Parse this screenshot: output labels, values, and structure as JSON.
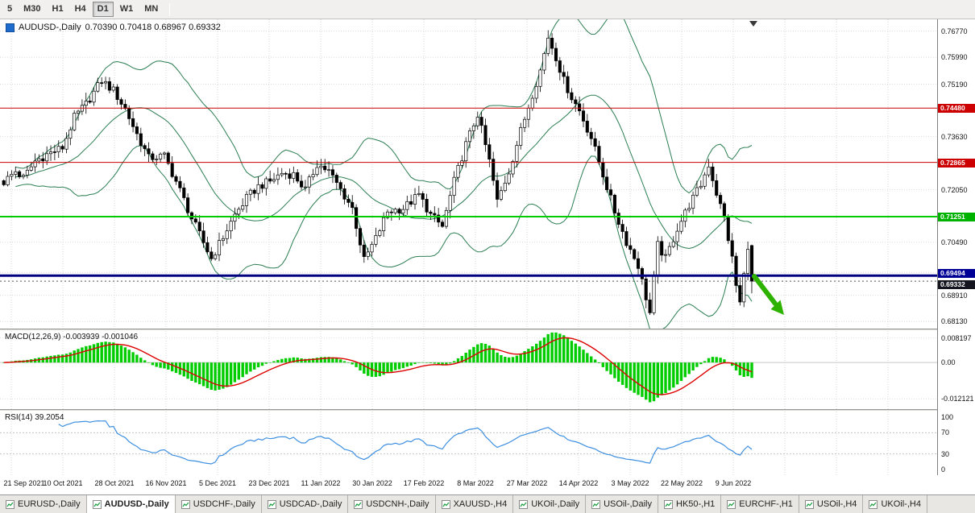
{
  "toolbar": {
    "timeframes": [
      "5",
      "M30",
      "H1",
      "H4",
      "D1",
      "W1",
      "MN"
    ],
    "active": "D1"
  },
  "chart": {
    "title": "AUDUSD-,Daily",
    "ohlc_text": "0.70390 0.70418 0.68967 0.69332"
  },
  "macd_panel": {
    "label": "MACD(12,26,9) -0.003939 -0.001046"
  },
  "rsi_panel": {
    "label": "RSI(14) 39.2054"
  },
  "price_axis": {
    "ticks": [
      {
        "text": "0.76770",
        "value": 0.7677
      },
      {
        "text": "0.75990",
        "value": 0.7599
      },
      {
        "text": "0.75190",
        "value": 0.7519
      },
      {
        "text": "0.73630",
        "value": 0.7363
      },
      {
        "text": "0.72050",
        "value": 0.7205
      },
      {
        "text": "0.70490",
        "value": 0.7049
      },
      {
        "text": "0.69590",
        "value": 0.6959
      },
      {
        "text": "0.68910",
        "value": 0.6891
      },
      {
        "text": "0.68130",
        "value": 0.6813
      }
    ],
    "badges": [
      {
        "text": "0.74480",
        "value": 0.7448,
        "bg": "#cc0000",
        "nudge": 0
      },
      {
        "text": "0.72865",
        "value": 0.72865,
        "bg": "#cc0000",
        "nudge": 0
      },
      {
        "text": "0.71251",
        "value": 0.71251,
        "bg": "#00b200",
        "nudge": 0
      },
      {
        "text": "0.69494",
        "value": 0.69494,
        "bg": "#000097",
        "nudge": -3
      },
      {
        "text": "0.69332",
        "value": 0.69332,
        "bg": "#15151f",
        "nudge": 4
      }
    ]
  },
  "time_axis": {
    "labels": [
      "21 Sep 2021",
      "10 Oct 2021",
      "28 Oct 2021",
      "16 Nov 2021",
      "5 Dec 2021",
      "23 Dec 2021",
      "11 Jan 2022",
      "30 Jan 2022",
      "17 Feb 2022",
      "8 Mar 2022",
      "27 Mar 2022",
      "14 Apr 2022",
      "3 May 2022",
      "22 May 2022",
      "9 Jun 2022"
    ]
  },
  "tabs": {
    "active_index": 1,
    "items": [
      "EURUSD-,Daily",
      "AUDUSD-,Daily",
      "USDCHF-,Daily",
      "USDCAD-,Daily",
      "USDCNH-,Daily",
      "XAUUSD-,H4",
      "UKOil-,Daily",
      "USOil-,Daily",
      "HK50-,H1",
      "EURCHF-,H1",
      "USOil-,H4",
      "UKOil-,H4"
    ]
  },
  "chart_data": {
    "type": "candlestick",
    "symbol": "AUDUSD-",
    "period": "Daily",
    "current_ohlc": {
      "open": 0.7039,
      "high": 0.70418,
      "low": 0.68967,
      "close": 0.69332
    },
    "price_domain": [
      0.6792,
      0.7712
    ],
    "num_candles": 192,
    "close_path": [
      [
        0,
        0.7228
      ],
      [
        3,
        0.726
      ],
      [
        5,
        0.724
      ],
      [
        8,
        0.729
      ],
      [
        11,
        0.731
      ],
      [
        15,
        0.733
      ],
      [
        18,
        0.742
      ],
      [
        21,
        0.746
      ],
      [
        25,
        0.753
      ],
      [
        28,
        0.75
      ],
      [
        31,
        0.7445
      ],
      [
        34,
        0.737
      ],
      [
        37,
        0.73
      ],
      [
        41,
        0.7305
      ],
      [
        44,
        0.723
      ],
      [
        48,
        0.712
      ],
      [
        53,
        0.7
      ],
      [
        56,
        0.7065
      ],
      [
        59,
        0.713
      ],
      [
        62,
        0.718
      ],
      [
        65,
        0.7215
      ],
      [
        68,
        0.723
      ],
      [
        71,
        0.7255
      ],
      [
        74,
        0.725
      ],
      [
        77,
        0.7205
      ],
      [
        80,
        0.7282
      ],
      [
        83,
        0.726
      ],
      [
        86,
        0.7205
      ],
      [
        89,
        0.715
      ],
      [
        92,
        0.6995
      ],
      [
        95,
        0.706
      ],
      [
        98,
        0.714
      ],
      [
        102,
        0.715
      ],
      [
        106,
        0.719
      ],
      [
        109,
        0.713
      ],
      [
        112,
        0.7095
      ],
      [
        115,
        0.723
      ],
      [
        118,
        0.734
      ],
      [
        121,
        0.743
      ],
      [
        124,
        0.729
      ],
      [
        126,
        0.717
      ],
      [
        129,
        0.726
      ],
      [
        132,
        0.738
      ],
      [
        135,
        0.749
      ],
      [
        137,
        0.756
      ],
      [
        139,
        0.766
      ],
      [
        141,
        0.76
      ],
      [
        143,
        0.753
      ],
      [
        145,
        0.748
      ],
      [
        147,
        0.744
      ],
      [
        150,
        0.736
      ],
      [
        153,
        0.725
      ],
      [
        156,
        0.714
      ],
      [
        159,
        0.705
      ],
      [
        162,
        0.698
      ],
      [
        165,
        0.6838
      ],
      [
        167,
        0.704
      ],
      [
        169,
        0.7
      ],
      [
        172,
        0.709
      ],
      [
        175,
        0.716
      ],
      [
        178,
        0.722
      ],
      [
        180,
        0.728
      ],
      [
        182,
        0.7195
      ],
      [
        184,
        0.712
      ],
      [
        186,
        0.7
      ],
      [
        187,
        0.692
      ],
      [
        188,
        0.6868
      ],
      [
        189,
        0.695
      ],
      [
        190,
        0.704
      ],
      [
        191,
        0.6933
      ]
    ],
    "indicators": {
      "bollinger": {
        "period": 20,
        "deviation": 2,
        "color": "#2a7d52"
      },
      "macd": {
        "fast": 12,
        "slow": 26,
        "signal": 9,
        "value": -0.003939,
        "signal_value": -0.001046,
        "domain": [
          -0.0155,
          0.0105
        ],
        "axis_ticks": [
          {
            "text": "0.008197",
            "value": 0.008197
          },
          {
            "text": "0.00",
            "value": 0
          },
          {
            "text": "-0.012121",
            "value": -0.012121
          }
        ],
        "hist_color": "#00cc00",
        "signal_color": "#dd0000"
      },
      "rsi": {
        "period": 14,
        "value": 39.2054,
        "axis_ticks": [
          {
            "text": "100",
            "value": 100
          },
          {
            "text": "70",
            "value": 70
          },
          {
            "text": "30",
            "value": 30
          },
          {
            "text": "0",
            "value": 0
          }
        ],
        "levels": [
          70,
          30
        ],
        "color": "#3d8fe0"
      }
    },
    "horizontal_lines": [
      {
        "price": 0.7448,
        "color": "#cc0000",
        "width": 1
      },
      {
        "price": 0.72865,
        "color": "#cc0000",
        "width": 1
      },
      {
        "price": 0.71251,
        "color": "#00cc00",
        "width": 2
      },
      {
        "price": 0.69494,
        "color": "#000080",
        "width": 3
      },
      {
        "price": 0.69332,
        "color": "#555555",
        "width": 1,
        "dash": "2 3"
      }
    ],
    "annotations": [
      {
        "type": "sell-arrow",
        "direction": "down-right",
        "color": "#2DB200"
      }
    ]
  }
}
